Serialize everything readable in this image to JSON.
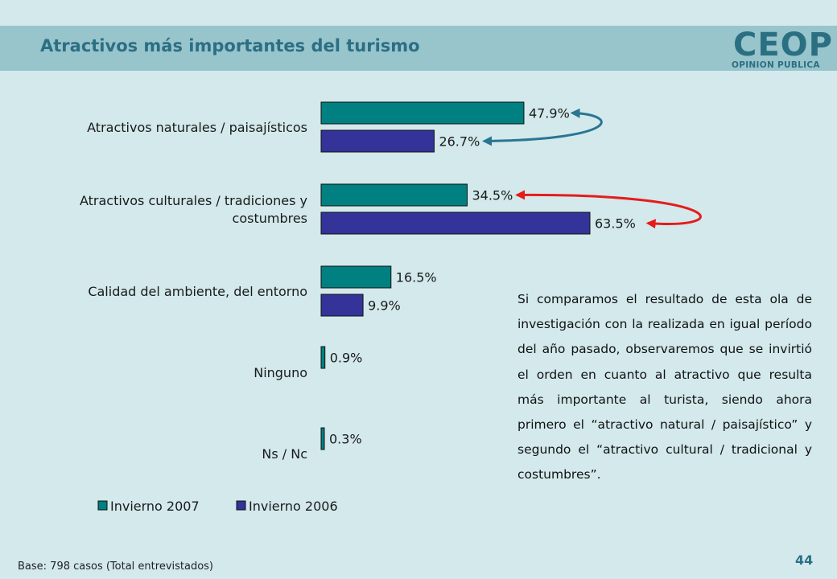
{
  "header": {
    "title": "Atractivos más importantes del turismo",
    "logo_main": "CEOP",
    "logo_sub": "OPINION PUBLICA"
  },
  "note": "Si comparamos el resultado de esta ola de investigación con la realizada en igual período del año pasado, observaremos que se invirtió el orden en cuanto al atractivo que resulta más importante al turista, siendo ahora primero el “atractivo natural / paisajístico” y segundo el “atractivo cultural / tradicional y costumbres”.",
  "footer": {
    "base": "Base: 798 casos (Total entrevistados)",
    "page_number": "44"
  },
  "colors": {
    "background": "#d3e9ec",
    "header_band": "#98c4cc",
    "title": "#2b6f83",
    "series_2007": "#008080",
    "series_2006": "#333399",
    "arrow_blue": "#2a7592",
    "arrow_red": "#e51c1c"
  },
  "chart_data": {
    "type": "bar",
    "orientation": "horizontal",
    "categories": [
      [
        "Atractivos naturales / paisajísticos"
      ],
      [
        "Atractivos culturales / tradiciones y",
        "costumbres"
      ],
      [
        "Calidad del ambiente, del entorno"
      ],
      [
        "Ninguno"
      ],
      [
        "Ns / Nc"
      ]
    ],
    "series": [
      {
        "name": "Invierno 2007",
        "values": [
          47.9,
          34.5,
          16.5,
          0.9,
          0.3
        ],
        "labels": [
          "47.9%",
          "34.5%",
          "16.5%",
          "0.9%",
          "0.3%"
        ]
      },
      {
        "name": "Invierno 2006",
        "values": [
          26.7,
          63.5,
          9.9,
          null,
          null
        ],
        "labels": [
          "26.7%",
          "63.5%",
          "9.9%",
          "",
          ""
        ]
      }
    ],
    "unit": "%",
    "legend_position": "bottom",
    "grid": false,
    "annotations": [
      {
        "type": "curved-arrow",
        "category": 0,
        "from_series": 0,
        "to_series": 1,
        "color": "#2a7592"
      },
      {
        "type": "curved-arrow",
        "category": 1,
        "from_series": 1,
        "to_series": 0,
        "color": "#e51c1c"
      }
    ]
  }
}
